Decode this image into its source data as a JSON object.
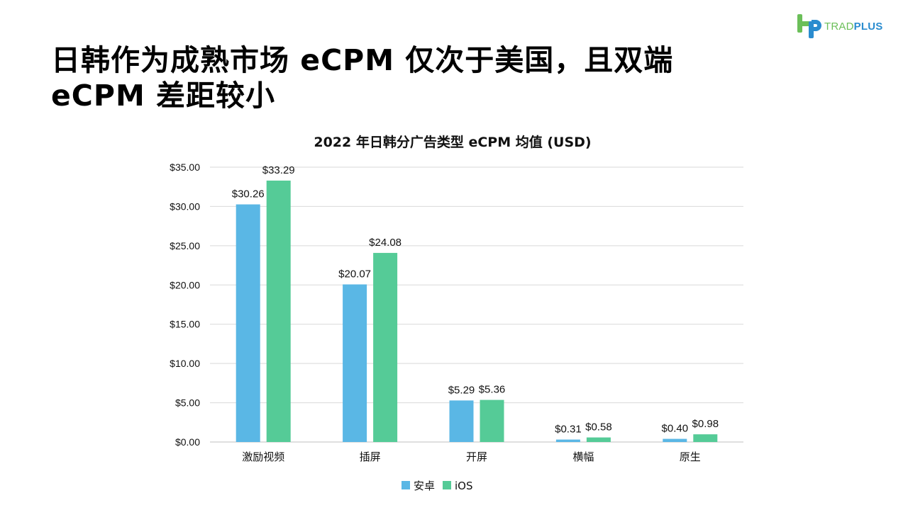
{
  "header": {
    "logo_text_trad": "TRAD",
    "logo_text_plus": "PLUS",
    "logo_icon": "tradplus-logo-icon",
    "title_line1": "日韩作为成熟市场 eCPM 仅次于美国，且双端",
    "title_line2": "eCPM 差距较小"
  },
  "colors": {
    "android": "#5ab7e5",
    "ios": "#55cb97",
    "grid": "#d9d9d9",
    "axis": "#bfbfbf",
    "logo_green": "#6bbf59",
    "logo_blue": "#2a8ccf"
  },
  "chart_data": {
    "type": "bar",
    "title": "2022 年日韩分广告类型 eCPM 均值 (USD)",
    "xlabel": "",
    "ylabel": "",
    "categories": [
      "激励视频",
      "插屏",
      "开屏",
      "横幅",
      "原生"
    ],
    "series": [
      {
        "name": "安卓",
        "values": [
          30.26,
          20.07,
          5.29,
          0.31,
          0.4
        ],
        "labels": [
          "$30.26",
          "$20.07",
          "$5.29",
          "$0.31",
          "$0.40"
        ]
      },
      {
        "name": "iOS",
        "values": [
          33.29,
          24.08,
          5.36,
          0.58,
          0.98
        ],
        "labels": [
          "$33.29",
          "$24.08",
          "$5.36",
          "$0.58",
          "$0.98"
        ]
      }
    ],
    "ylim": [
      0,
      35
    ],
    "yticks": [
      0,
      5,
      10,
      15,
      20,
      25,
      30,
      35
    ],
    "ytick_labels": [
      "$0.00",
      "$5.00",
      "$10.00",
      "$15.00",
      "$20.00",
      "$25.00",
      "$30.00",
      "$35.00"
    ],
    "grid": true,
    "legend_position": "bottom-center"
  }
}
